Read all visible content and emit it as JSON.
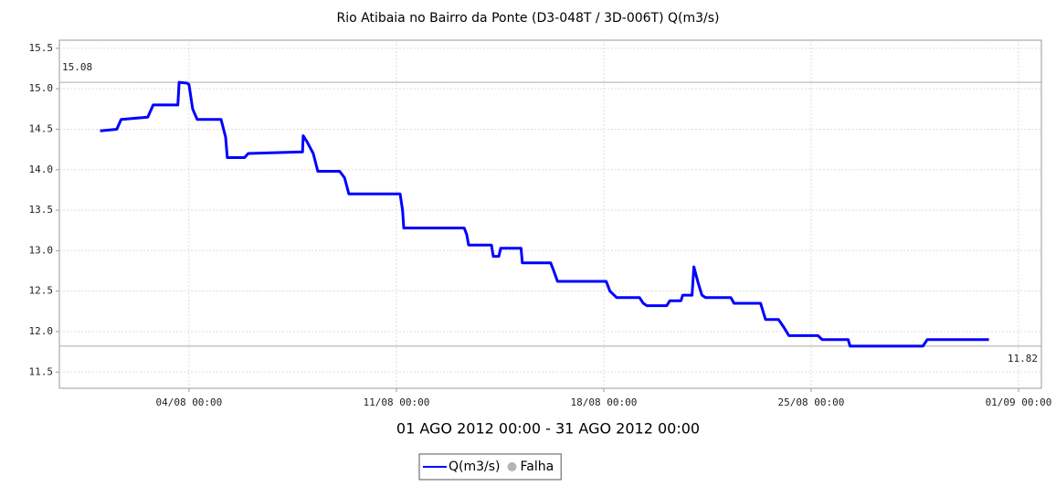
{
  "chart_data": {
    "type": "line",
    "title": "Rio Atibaia no Bairro da Ponte (D3-048T / 3D-006T) Q(m3/s)",
    "xlabel": "01 AGO 2012 00:00 - 31 AGO 2012 00:00",
    "x": [
      "2012-08-01T00:00",
      "2012-08-01T13:30",
      "2012-08-01T17:00",
      "2012-08-02T14:40",
      "2012-08-02T19:00",
      "2012-08-03T15:00",
      "2012-08-03T16:00",
      "2012-08-03T22:30",
      "2012-08-04T00:00",
      "2012-08-04T03:00",
      "2012-08-04T06:40",
      "2012-08-05T02:00",
      "2012-08-05T05:40",
      "2012-08-05T07:00",
      "2012-08-05T21:00",
      "2012-08-06T00:00",
      "2012-08-07T20:00",
      "2012-08-07T20:30",
      "2012-08-07T23:30",
      "2012-08-08T04:40",
      "2012-08-08T08:20",
      "2012-08-09T02:00",
      "2012-08-09T06:00",
      "2012-08-09T09:30",
      "2012-08-11T03:00",
      "2012-08-11T05:00",
      "2012-08-11T06:00",
      "2012-08-13T07:00",
      "2012-08-13T09:00",
      "2012-08-13T10:30",
      "2012-08-14T05:00",
      "2012-08-14T06:30",
      "2012-08-14T11:00",
      "2012-08-14T12:30",
      "2012-08-15T05:00",
      "2012-08-15T06:00",
      "2012-08-16T05:00",
      "2012-08-16T07:30",
      "2012-08-16T10:30",
      "2012-08-18T02:00",
      "2012-08-18T05:00",
      "2012-08-18T10:30",
      "2012-08-19T05:00",
      "2012-08-19T08:00",
      "2012-08-19T11:00",
      "2012-08-20T03:00",
      "2012-08-20T05:30",
      "2012-08-20T14:30",
      "2012-08-20T16:00",
      "2012-08-20T23:30",
      "2012-08-21T01:00",
      "2012-08-21T04:30",
      "2012-08-21T07:30",
      "2012-08-21T10:30",
      "2012-08-22T07:00",
      "2012-08-22T09:30",
      "2012-08-23T07:00",
      "2012-08-23T09:00",
      "2012-08-23T11:00",
      "2012-08-23T21:30",
      "2012-08-24T02:00",
      "2012-08-24T06:00",
      "2012-08-25T05:30",
      "2012-08-25T09:00",
      "2012-08-26T06:00",
      "2012-08-26T07:30",
      "2012-08-28T18:30",
      "2012-08-28T22:00",
      "2012-08-31T00:00"
    ],
    "series": [
      {
        "name": "Q(m3/s)",
        "color": "#0000ff",
        "values": [
          14.48,
          14.5,
          14.62,
          14.65,
          14.8,
          14.8,
          15.08,
          15.07,
          15.05,
          14.75,
          14.62,
          14.62,
          14.4,
          14.15,
          14.15,
          14.2,
          14.22,
          14.42,
          14.35,
          14.2,
          13.98,
          13.98,
          13.9,
          13.7,
          13.7,
          13.5,
          13.28,
          13.28,
          13.2,
          13.07,
          13.07,
          12.93,
          12.93,
          13.03,
          13.03,
          12.85,
          12.85,
          12.75,
          12.62,
          12.62,
          12.5,
          12.42,
          12.42,
          12.35,
          12.32,
          12.32,
          12.38,
          12.38,
          12.45,
          12.45,
          12.8,
          12.6,
          12.45,
          12.42,
          12.42,
          12.35,
          12.35,
          12.25,
          12.15,
          12.15,
          12.05,
          11.95,
          11.95,
          11.9,
          11.9,
          11.82,
          11.82,
          11.9,
          11.9
        ]
      },
      {
        "name": "Falha",
        "color": "#b4b4b4",
        "values": [
          null,
          null,
          null,
          null,
          null,
          null,
          null,
          null,
          null,
          null,
          null,
          null,
          null,
          null,
          null,
          null,
          null,
          null,
          null,
          null,
          null,
          null,
          null,
          null,
          null,
          null,
          null,
          null,
          null,
          null,
          null,
          null,
          null,
          null,
          null,
          null,
          null,
          null,
          null,
          null,
          null,
          null,
          null,
          null,
          null,
          null,
          null,
          null,
          null,
          null,
          null,
          null,
          null,
          null,
          null,
          null,
          null,
          null,
          null,
          null,
          null,
          null,
          null,
          null,
          null,
          null,
          null,
          null,
          null
        ]
      }
    ],
    "xlim": [
      "2012-07-30T15:00",
      "2012-09-01T18:30"
    ],
    "xticks": [
      {
        "value": "2012-08-04T00:00",
        "label": "04/08 00:00"
      },
      {
        "value": "2012-08-11T00:00",
        "label": "11/08 00:00"
      },
      {
        "value": "2012-08-18T00:00",
        "label": "18/08 00:00"
      },
      {
        "value": "2012-08-25T00:00",
        "label": "25/08 00:00"
      },
      {
        "value": "2012-09-01T00:00",
        "label": "01/09 00:00"
      }
    ],
    "ylim": [
      11.3,
      15.6
    ],
    "yticks": [
      11.5,
      {
        "value": 12,
        "label": "12.0"
      },
      12.5,
      {
        "value": 13,
        "label": "13.0"
      },
      13.5,
      {
        "value": 14,
        "label": "14.0"
      },
      14.5,
      {
        "value": 15,
        "label": "15.0"
      },
      15.5
    ],
    "markers": [
      15.08,
      11.82
    ],
    "grid": true
  }
}
